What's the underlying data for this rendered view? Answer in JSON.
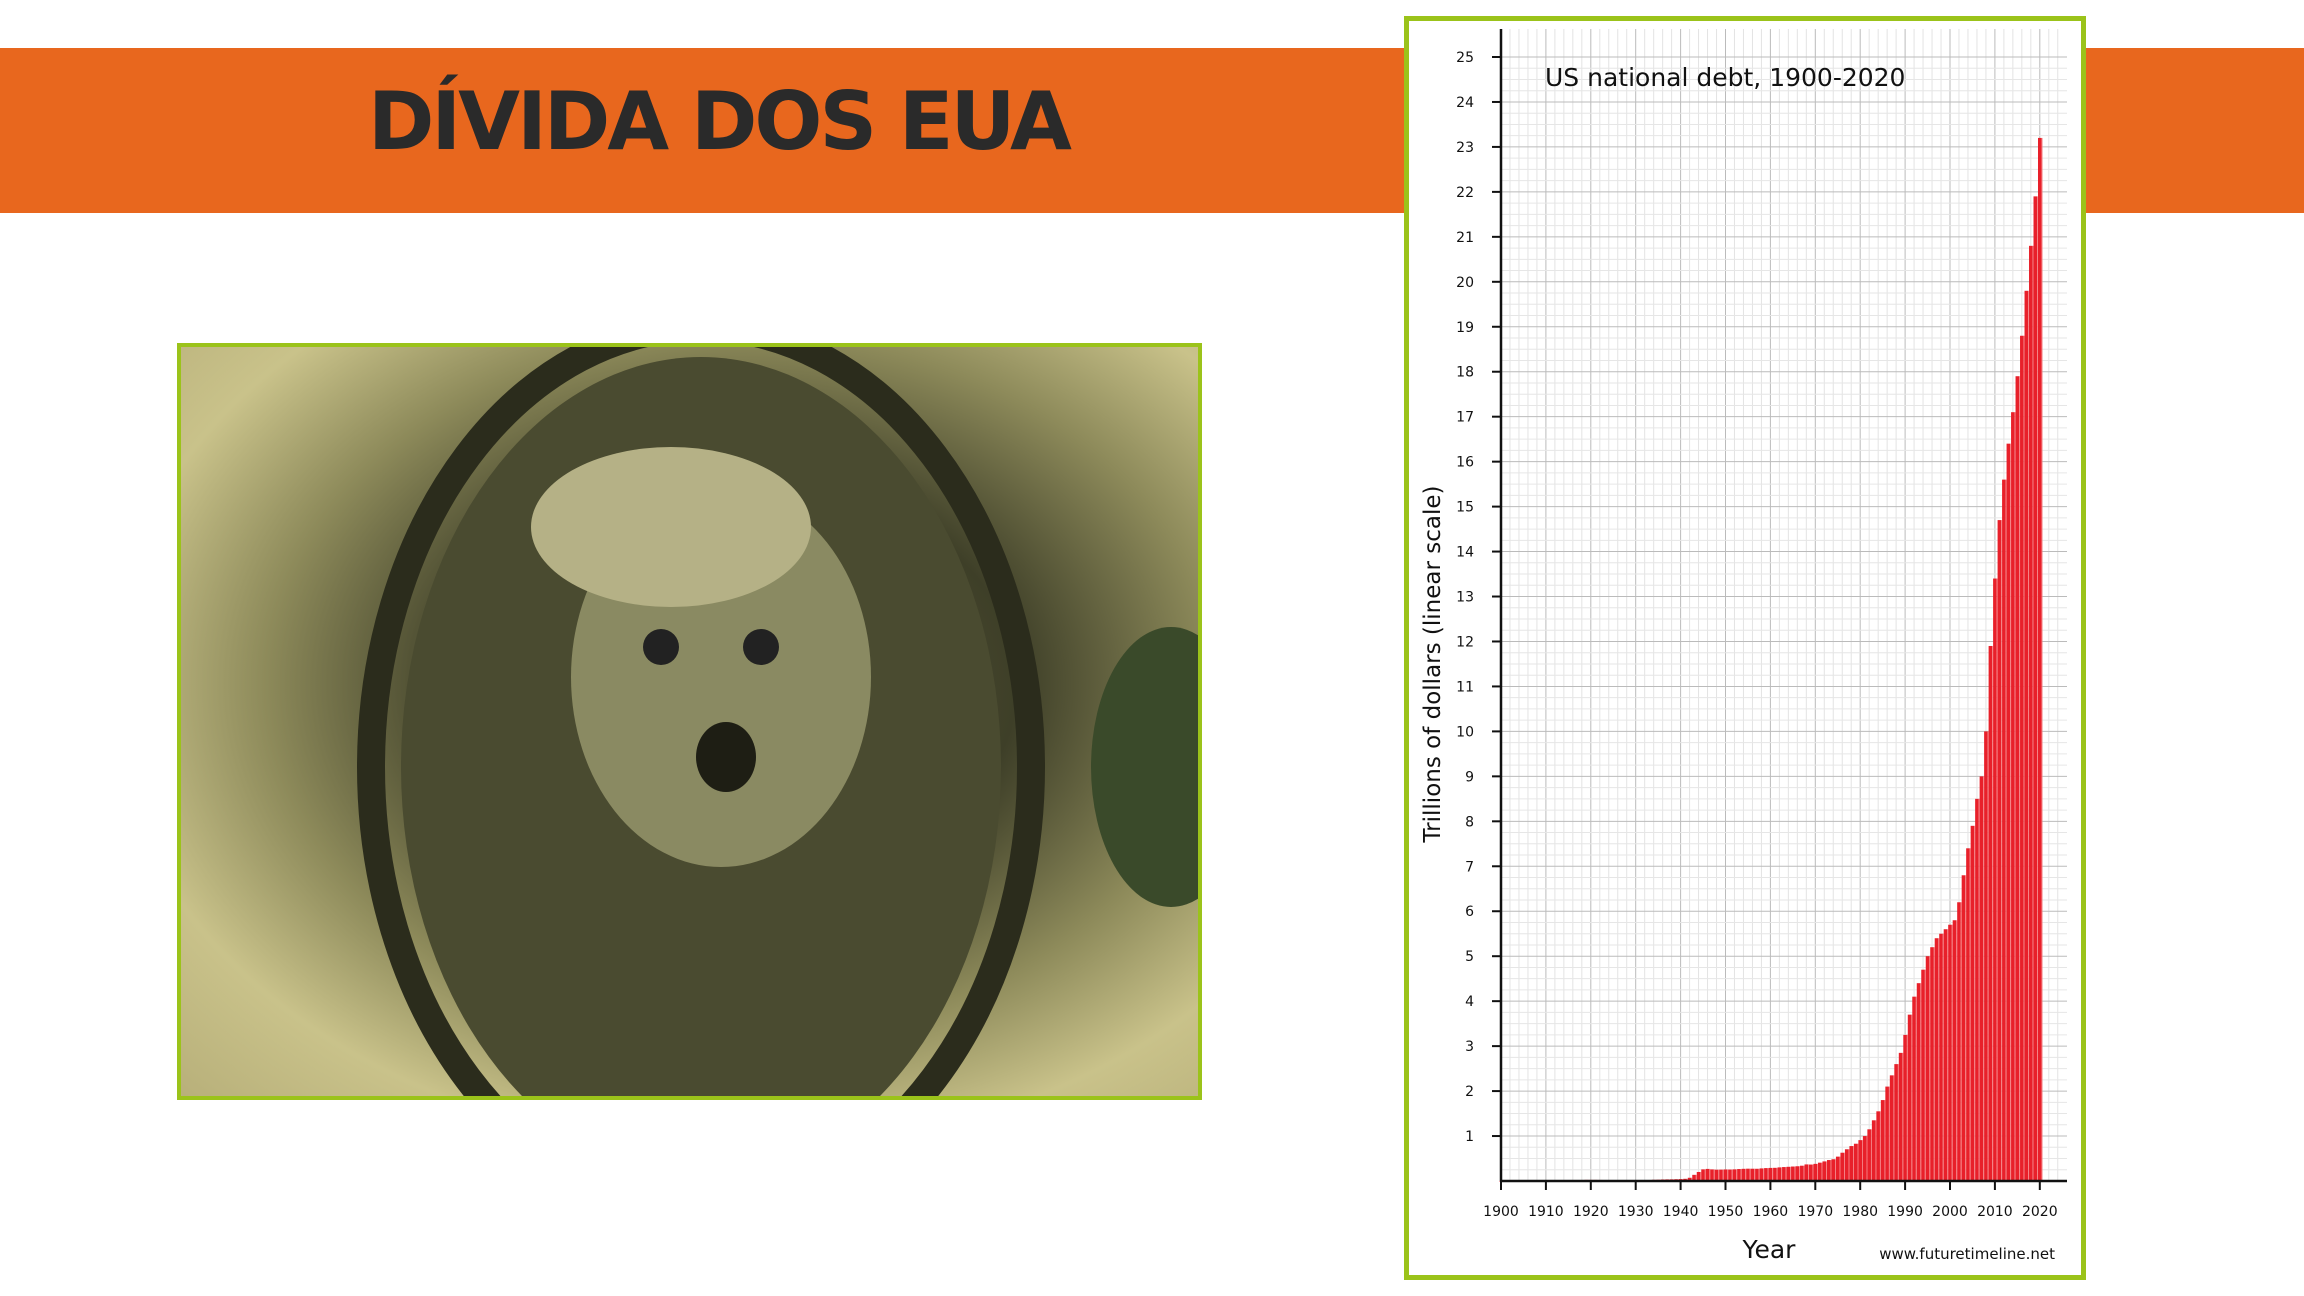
{
  "slide": {
    "title": "DÍVIDA DOS EUA"
  },
  "colors": {
    "band": "#E8671E",
    "frame": "#9BC31A",
    "bar": "#E8202A",
    "title_text": "#2a2a2a"
  },
  "photo": {
    "description_icon": "dollar-bill-washington-icon"
  },
  "chart_data": {
    "type": "bar",
    "title": "US national debt, 1900-2020",
    "xlabel": "Year",
    "ylabel": "Trillions of dollars (linear scale)",
    "source": "www.futuretimeline.net",
    "xlim": [
      1900,
      2025
    ],
    "ylim": [
      0,
      25
    ],
    "grid": true,
    "x_ticks": [
      "1900",
      "1910",
      "1920",
      "1930",
      "1940",
      "1950",
      "1960",
      "1970",
      "1980",
      "1990",
      "2000",
      "2010",
      "2020"
    ],
    "y_ticks": [
      "1",
      "2",
      "3",
      "4",
      "5",
      "6",
      "7",
      "8",
      "9",
      "10",
      "11",
      "12",
      "13",
      "14",
      "15",
      "16",
      "17",
      "18",
      "19",
      "20",
      "21",
      "22",
      "23",
      "24",
      "25"
    ],
    "x_start": 1900,
    "values": [
      0.001,
      0.001,
      0.001,
      0.001,
      0.001,
      0.001,
      0.001,
      0.001,
      0.001,
      0.001,
      0.001,
      0.001,
      0.001,
      0.001,
      0.001,
      0.002,
      0.002,
      0.003,
      0.012,
      0.025,
      0.024,
      0.024,
      0.023,
      0.022,
      0.021,
      0.02,
      0.02,
      0.018,
      0.018,
      0.017,
      0.016,
      0.017,
      0.019,
      0.022,
      0.027,
      0.029,
      0.034,
      0.036,
      0.037,
      0.04,
      0.043,
      0.049,
      0.072,
      0.137,
      0.201,
      0.259,
      0.269,
      0.258,
      0.252,
      0.253,
      0.257,
      0.255,
      0.259,
      0.266,
      0.271,
      0.274,
      0.273,
      0.272,
      0.28,
      0.287,
      0.291,
      0.293,
      0.303,
      0.31,
      0.316,
      0.322,
      0.328,
      0.34,
      0.369,
      0.366,
      0.381,
      0.408,
      0.436,
      0.466,
      0.484,
      0.542,
      0.629,
      0.706,
      0.777,
      0.829,
      0.909,
      1.0,
      1.15,
      1.35,
      1.55,
      1.8,
      2.1,
      2.35,
      2.6,
      2.85,
      3.25,
      3.7,
      4.1,
      4.4,
      4.7,
      5.0,
      5.2,
      5.4,
      5.5,
      5.6,
      5.7,
      5.8,
      6.2,
      6.8,
      7.4,
      7.9,
      8.5,
      9.0,
      10.0,
      11.9,
      13.4,
      14.7,
      15.6,
      16.4,
      17.1,
      17.9,
      18.8,
      19.8,
      20.8,
      21.9,
      23.2
    ]
  }
}
